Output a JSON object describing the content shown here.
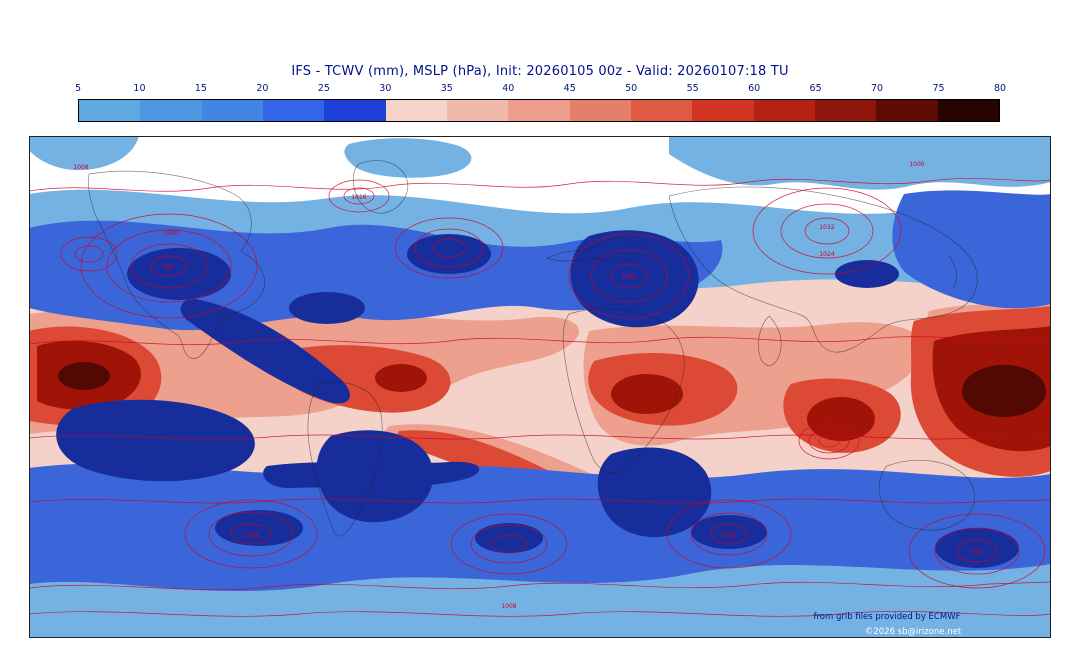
{
  "title": "IFS - TCWV (mm), MSLP (hPa), Init: 20260105 00z - Valid: 20260107:18 TU",
  "colorbar": {
    "ticks": [
      "5",
      "10",
      "15",
      "20",
      "25",
      "30",
      "35",
      "40",
      "45",
      "50",
      "55",
      "60",
      "65",
      "70",
      "75",
      "80"
    ],
    "colors": [
      "#5fa8e0",
      "#4f97e0",
      "#4285e2",
      "#3365e6",
      "#1e3fd8",
      "#f5d3ca",
      "#f0b9ac",
      "#ec9d8c",
      "#e57f6a",
      "#de5a42",
      "#d23524",
      "#b32214",
      "#8d150b",
      "#5e0c05",
      "#250402"
    ]
  },
  "map": {
    "isobar_labels": [
      "992",
      "1000",
      "1008",
      "1016",
      "1032",
      "1024",
      "1000",
      "1008",
      "992",
      "1000",
      "1008",
      "1000"
    ]
  },
  "credits": {
    "line1": "from grib files provided by ECMWF",
    "line2": "©2026 sb@irizone.net"
  }
}
